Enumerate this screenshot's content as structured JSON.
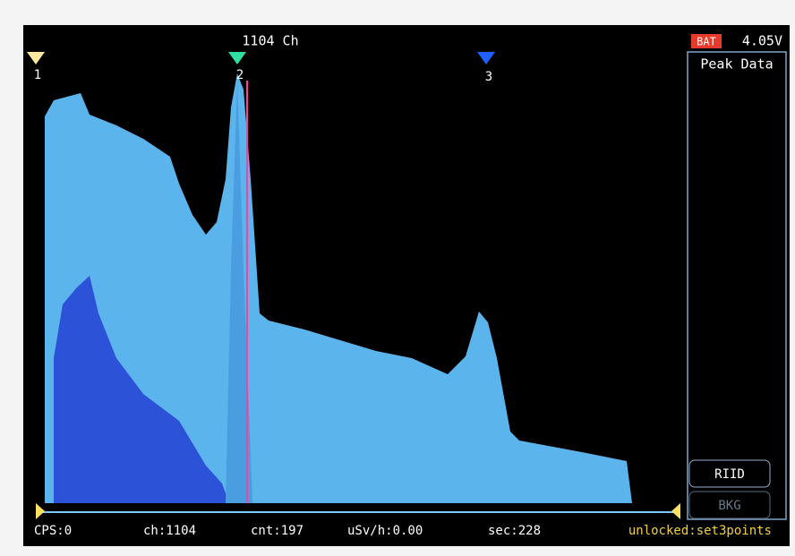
{
  "header": {
    "channel": "1104 Ch",
    "battery_label": "BAT",
    "battery_voltage": "4.05V"
  },
  "markers": [
    "1",
    "2",
    "3"
  ],
  "side_panel": {
    "title": "Peak Data",
    "buttons": [
      "RIID",
      "BKG"
    ]
  },
  "status_bar": [
    "CPS:0",
    "ch:1104",
    "cnt:197",
    "uSv/h:0.00",
    "sec:228",
    "unlocked:set3points"
  ]
}
